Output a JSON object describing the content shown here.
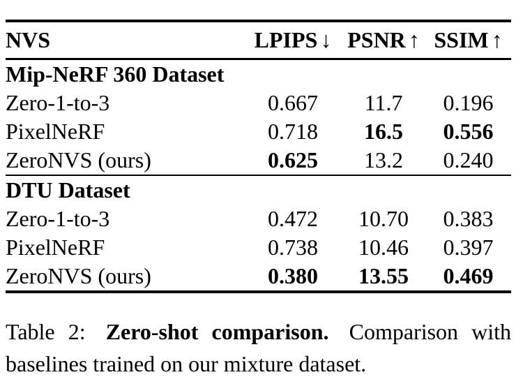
{
  "table": {
    "header": {
      "method": "NVS",
      "lpips": "LPIPS",
      "lpips_arrow": "↓",
      "psnr": "PSNR",
      "psnr_arrow": "↑",
      "ssim": "SSIM",
      "ssim_arrow": "↑"
    },
    "sections": [
      {
        "title": "Mip-NeRF 360 Dataset",
        "rows": [
          {
            "method": "Zero-1-to-3",
            "lpips": "0.667",
            "psnr": "11.7",
            "ssim": "0.196"
          },
          {
            "method": "PixelNeRF",
            "lpips": "0.718",
            "psnr": "16.5",
            "ssim": "0.556"
          },
          {
            "method": "ZeroNVS (ours)",
            "lpips": "0.625",
            "psnr": "13.2",
            "ssim": "0.240"
          }
        ]
      },
      {
        "title": "DTU Dataset",
        "rows": [
          {
            "method": "Zero-1-to-3",
            "lpips": "0.472",
            "psnr": "10.70",
            "ssim": "0.383"
          },
          {
            "method": "PixelNeRF",
            "lpips": "0.738",
            "psnr": "10.46",
            "ssim": "0.397"
          },
          {
            "method": "ZeroNVS (ours)",
            "lpips": "0.380",
            "psnr": "13.55",
            "ssim": "0.469"
          }
        ]
      }
    ]
  },
  "caption": {
    "label": "Table 2:",
    "title": "Zero-shot comparison",
    "title_period": ".",
    "text": "Comparison with baselines trained on our mixture dataset."
  },
  "colors": {
    "background": "#ffffff",
    "text": "#000000",
    "rule": "#000000"
  }
}
